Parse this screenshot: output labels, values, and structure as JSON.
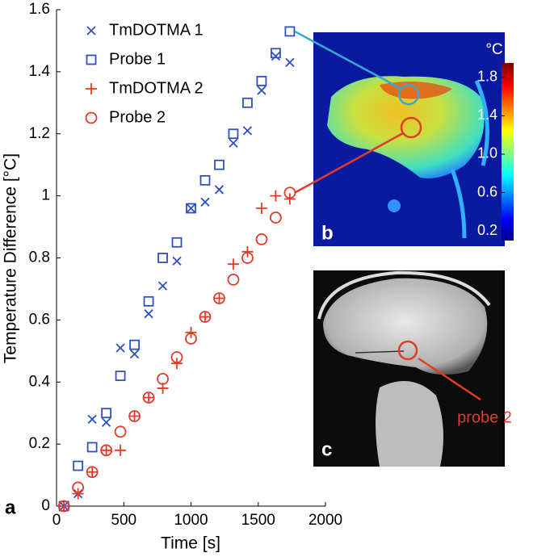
{
  "chart_data": {
    "type": "scatter",
    "x_label": "Time [s]",
    "y_label": "Temperature Difference [°C]",
    "xlim": [
      0,
      2000
    ],
    "xticks": [
      0,
      500,
      1000,
      1500,
      2000
    ],
    "ylim": [
      0,
      1.6
    ],
    "yticks": [
      0,
      0.2,
      0.4,
      0.6,
      0.8,
      1,
      1.2,
      1.4,
      1.6
    ],
    "legend": "upper left",
    "x": [
      55,
      160,
      265,
      370,
      475,
      580,
      685,
      790,
      895,
      1000,
      1105,
      1210,
      1315,
      1420,
      1525,
      1630,
      1735
    ],
    "series": [
      {
        "name": "TmDOTMA 1",
        "color": "#2f4fc4",
        "marker": "x",
        "values": [
          0,
          0.04,
          0.28,
          0.27,
          0.51,
          0.49,
          0.62,
          0.71,
          0.79,
          0.96,
          0.98,
          1.02,
          1.17,
          1.21,
          1.34,
          1.45,
          1.43
        ]
      },
      {
        "name": "Probe 1",
        "color": "#2f4fc4",
        "marker": "square",
        "values": [
          0,
          0.13,
          0.19,
          0.3,
          0.42,
          0.52,
          0.66,
          0.8,
          0.85,
          0.96,
          1.05,
          1.1,
          1.2,
          1.3,
          1.37,
          1.46,
          1.53
        ]
      },
      {
        "name": "TmDOTMA 2",
        "color": "#e03c28",
        "marker": "plus",
        "values": [
          0,
          0.04,
          0.11,
          0.18,
          0.18,
          0.29,
          0.35,
          0.38,
          0.46,
          0.56,
          0.61,
          0.67,
          0.78,
          0.82,
          0.96,
          1.0,
          0.99
        ]
      },
      {
        "name": "Probe 2",
        "color": "#e03c28",
        "marker": "circle",
        "values": [
          0,
          0.06,
          0.11,
          0.18,
          0.24,
          0.29,
          0.35,
          0.41,
          0.48,
          0.54,
          0.61,
          0.67,
          0.73,
          0.8,
          0.86,
          0.93,
          1.01
        ]
      }
    ],
    "panel_labels": [
      "a",
      "b",
      "c"
    ],
    "colorbar": {
      "label": "°C",
      "clim": [
        0.1,
        1.95
      ],
      "ticks": [
        0.2,
        0.6,
        {
          "value": 1,
          "label": "1.0"
        },
        1.4,
        1.8
      ]
    },
    "annotation": "probe 2"
  }
}
